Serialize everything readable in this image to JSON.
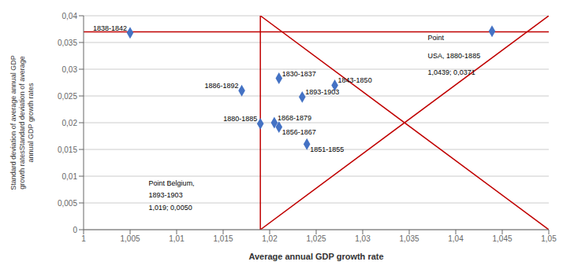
{
  "chart_data": {
    "type": "scatter",
    "xlabel": "Average annual GDP growth rate",
    "ylabel": "Standard deviation of average annual GDP\ngrowth ratesStandard deviation of average\nannual GDP growth rates",
    "x": [
      1.005,
      1.017,
      1.019,
      1.021,
      1.0205,
      1.021,
      1.0235,
      1.024,
      1.027,
      1.0439
    ],
    "values": [
      0.0368,
      0.026,
      0.0198,
      0.0283,
      0.02,
      0.0192,
      0.0248,
      0.016,
      0.027,
      0.0371
    ],
    "labels": [
      "1838-1842",
      "1886-1892",
      "1880-1885",
      "1830-1837",
      "1868-1879",
      "1856-1867",
      "1893-1903",
      "1851-1855",
      "1843-1850",
      null
    ],
    "color": "#4472C4",
    "marker": "diamond",
    "xlim": [
      1.0,
      1.05
    ],
    "ylim": [
      0.0,
      0.04
    ],
    "xticks": [
      1,
      {
        "value": 1.005,
        "label": "1,005"
      },
      {
        "value": 1.01,
        "label": "1,01"
      },
      {
        "value": 1.015,
        "label": "1,015"
      },
      {
        "value": 1.02,
        "label": "1,02"
      },
      {
        "value": 1.025,
        "label": "1,025"
      },
      {
        "value": 1.03,
        "label": "1,03"
      },
      {
        "value": 1.035,
        "label": "1,035"
      },
      {
        "value": 1.04,
        "label": "1,04"
      },
      {
        "value": 1.045,
        "label": "1,045"
      },
      {
        "value": 1.05,
        "label": "1,05"
      }
    ],
    "yticks": [
      0,
      {
        "value": 0.005,
        "label": "0,005"
      },
      {
        "value": 0.01,
        "label": "0,01"
      },
      {
        "value": 0.015,
        "label": "0,015"
      },
      {
        "value": 0.02,
        "label": "0,02"
      },
      {
        "value": 0.025,
        "label": "0,025"
      },
      {
        "value": 0.03,
        "label": "0,03"
      },
      {
        "value": 0.035,
        "label": "0,035"
      },
      {
        "value": 0.04,
        "label": "0,04"
      }
    ],
    "grid": true,
    "lines": {
      "color": "#C00000",
      "hline": 0.037,
      "vline": 1.019,
      "segments": [
        {
          "x": [
            1.019,
            1.05
          ],
          "y": [
            0.04,
            0.0
          ]
        },
        {
          "x": [
            1.019,
            1.05
          ],
          "y": [
            0.0,
            0.04
          ]
        }
      ]
    },
    "annotations": [
      {
        "text": "Point Belgium,",
        "x": 1.007,
        "y": 0.0083
      },
      {
        "text": "1893-1903",
        "x": 1.007,
        "y": 0.006
      },
      {
        "text": "1,019; 0,0050",
        "x": 1.007,
        "y": 0.0037
      },
      {
        "text": "Point",
        "x": 1.037,
        "y": 0.0355
      },
      {
        "text": "USA, 1880-1885",
        "x": 1.037,
        "y": 0.032
      },
      {
        "text": "1,0439; 0,0371",
        "x": 1.037,
        "y": 0.029
      }
    ]
  }
}
